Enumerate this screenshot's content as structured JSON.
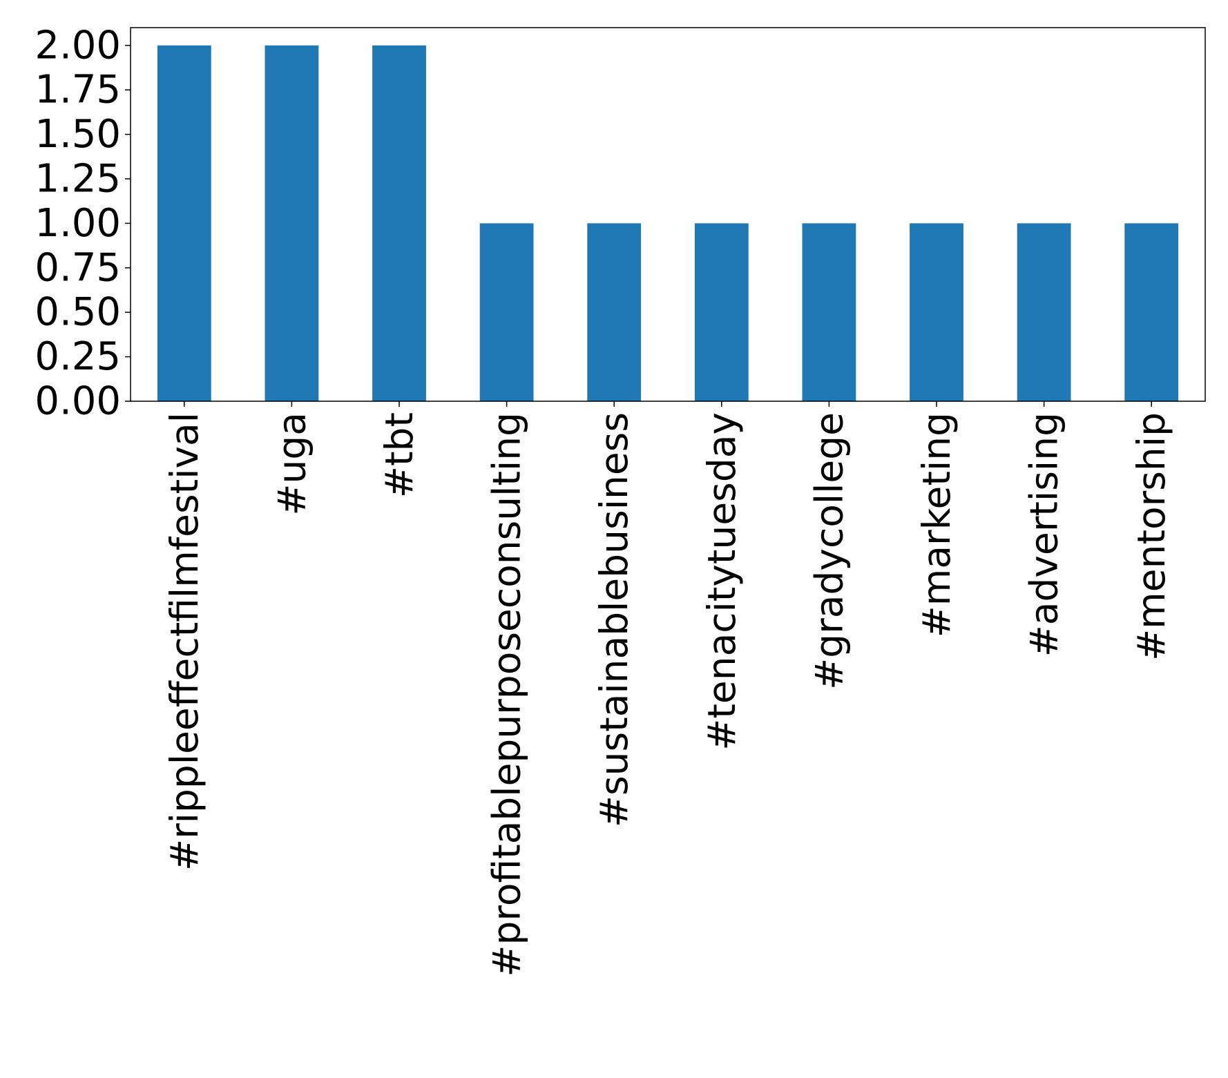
{
  "chart_data": {
    "type": "bar",
    "title": "",
    "xlabel": "",
    "ylabel": "",
    "categories": [
      "#rippleeffectfilmfestival",
      "#uga",
      "#tbt",
      "#profitablepurposeconsulting",
      "#sustainablebusiness",
      "#tenacitytuesday",
      "#gradycollege",
      "#marketing",
      "#advertising",
      "#mentorship"
    ],
    "values": [
      2,
      2,
      2,
      1,
      1,
      1,
      1,
      1,
      1,
      1
    ],
    "ylim": [
      0,
      2.1
    ],
    "yticks": [
      "0.00",
      "0.25",
      "0.50",
      "0.75",
      "1.00",
      "1.25",
      "1.50",
      "1.75",
      "2.00"
    ],
    "grid": false,
    "legend": "none",
    "colors": {
      "bar": "#1f77b4",
      "axis": "#000000",
      "background": "#ffffff"
    }
  }
}
